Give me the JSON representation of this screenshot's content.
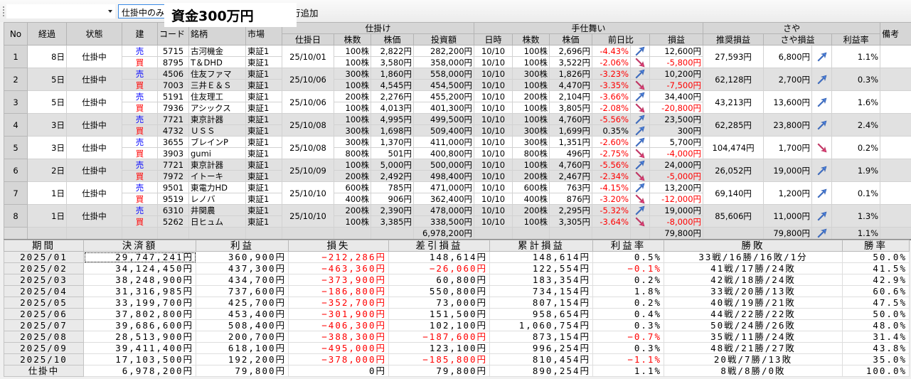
{
  "toolbar": {
    "filter_value": "仕掛中のみ",
    "capital_label": "資金300万円",
    "add_button_label": "行追加"
  },
  "colors": {
    "negative": "#ff0000",
    "sell": "#0000ff",
    "buy": "#ff0000",
    "arrow_up": "#4a7fd8",
    "arrow_down": "#e0407a"
  },
  "positions": {
    "group_headers": {
      "entry": "仕掛け",
      "exit": "手仕舞い",
      "spread": "さや"
    },
    "headers": {
      "no": "No",
      "elapsed": "経過",
      "status": "状態",
      "side": "建",
      "code": "コード",
      "name": "銘柄",
      "market": "市場",
      "entry_date": "仕掛日",
      "shares": "株数",
      "price": "株価",
      "amount": "投資額",
      "exit_date": "日時",
      "exit_shares": "株数",
      "exit_price": "株価",
      "change": "前日比",
      "pl": "損益",
      "recommended": "推奨損益",
      "spread_pl": "さや損益",
      "rate": "利益率",
      "note": "備考"
    },
    "rows": [
      {
        "no": "1",
        "elapsed": "8日",
        "status": "仕掛中",
        "entry_date": "25/10/01",
        "recommended": "27,593円",
        "spread_pl": "6,800円",
        "spread_dir": "up",
        "rate": "1.1%",
        "note": "",
        "legs": [
          {
            "side": "売",
            "code": "5715",
            "name": "古河機金",
            "market": "東証1",
            "shares": "100株",
            "price": "2,822円",
            "amount": "282,200円",
            "exit_date": "10/10",
            "exit_shares": "100株",
            "exit_price": "2,696円",
            "change": "-4.43%",
            "change_dir": "up",
            "pl": "12,600円"
          },
          {
            "side": "買",
            "code": "8795",
            "name": "T＆DHD",
            "market": "東証1",
            "shares": "100株",
            "price": "3,580円",
            "amount": "358,000円",
            "exit_date": "10/10",
            "exit_shares": "100株",
            "exit_price": "3,522円",
            "change": "-2.06%",
            "change_dir": "down",
            "pl": "-5,800円"
          }
        ]
      },
      {
        "no": "2",
        "elapsed": "5日",
        "status": "仕掛中",
        "entry_date": "25/10/06",
        "recommended": "62,128円",
        "spread_pl": "2,700円",
        "spread_dir": "up",
        "rate": "0.3%",
        "note": "",
        "legs": [
          {
            "side": "売",
            "code": "4506",
            "name": "住友ファマ",
            "market": "東証1",
            "shares": "300株",
            "price": "1,860円",
            "amount": "558,000円",
            "exit_date": "10/10",
            "exit_shares": "300株",
            "exit_price": "1,826円",
            "change": "-3.23%",
            "change_dir": "up",
            "pl": "10,200円"
          },
          {
            "side": "買",
            "code": "7003",
            "name": "三井Ｅ＆Ｓ",
            "market": "東証1",
            "shares": "100株",
            "price": "4,545円",
            "amount": "454,500円",
            "exit_date": "10/10",
            "exit_shares": "100株",
            "exit_price": "4,470円",
            "change": "-3.35%",
            "change_dir": "down",
            "pl": "-7,500円"
          }
        ]
      },
      {
        "no": "3",
        "elapsed": "5日",
        "status": "仕掛中",
        "entry_date": "25/10/06",
        "recommended": "43,213円",
        "spread_pl": "13,600円",
        "spread_dir": "up",
        "rate": "1.6%",
        "note": "",
        "legs": [
          {
            "side": "売",
            "code": "5191",
            "name": "住友理工",
            "market": "東証1",
            "shares": "200株",
            "price": "2,276円",
            "amount": "455,200円",
            "exit_date": "10/10",
            "exit_shares": "200株",
            "exit_price": "2,104円",
            "change": "-3.66%",
            "change_dir": "up",
            "pl": "34,400円"
          },
          {
            "side": "買",
            "code": "7936",
            "name": "アシックス",
            "market": "東証1",
            "shares": "100株",
            "price": "4,013円",
            "amount": "401,300円",
            "exit_date": "10/10",
            "exit_shares": "100株",
            "exit_price": "3,805円",
            "change": "-2.08%",
            "change_dir": "down",
            "pl": "-20,800円"
          }
        ]
      },
      {
        "no": "4",
        "elapsed": "3日",
        "status": "仕掛中",
        "entry_date": "25/10/08",
        "recommended": "62,285円",
        "spread_pl": "23,800円",
        "spread_dir": "up",
        "rate": "2.4%",
        "note": "",
        "legs": [
          {
            "side": "売",
            "code": "7721",
            "name": "東京計器",
            "market": "東証1",
            "shares": "100株",
            "price": "4,995円",
            "amount": "499,500円",
            "exit_date": "10/10",
            "exit_shares": "100株",
            "exit_price": "4,760円",
            "change": "-5.56%",
            "change_dir": "up",
            "pl": "23,500円"
          },
          {
            "side": "買",
            "code": "4732",
            "name": "ＵＳＳ",
            "market": "東証1",
            "shares": "300株",
            "price": "1,698円",
            "amount": "509,400円",
            "exit_date": "10/10",
            "exit_shares": "300株",
            "exit_price": "1,699円",
            "change": "0.35%",
            "change_dir": "up",
            "pl": "300円"
          }
        ]
      },
      {
        "no": "5",
        "elapsed": "3日",
        "status": "仕掛中",
        "entry_date": "25/10/08",
        "recommended": "104,474円",
        "spread_pl": "1,700円",
        "spread_dir": "down",
        "rate": "0.2%",
        "note": "",
        "legs": [
          {
            "side": "売",
            "code": "3655",
            "name": "ブレインP",
            "market": "東証1",
            "shares": "300株",
            "price": "1,370円",
            "amount": "411,000円",
            "exit_date": "10/10",
            "exit_shares": "300株",
            "exit_price": "1,351円",
            "change": "-2.60%",
            "change_dir": "up",
            "pl": "5,700円"
          },
          {
            "side": "買",
            "code": "3903",
            "name": "gumi",
            "market": "東証1",
            "shares": "800株",
            "price": "501円",
            "amount": "400,800円",
            "exit_date": "10/10",
            "exit_shares": "800株",
            "exit_price": "496円",
            "change": "-2.75%",
            "change_dir": "down",
            "pl": "-4,000円"
          }
        ]
      },
      {
        "no": "6",
        "elapsed": "2日",
        "status": "仕掛中",
        "entry_date": "25/10/09",
        "recommended": "26,052円",
        "spread_pl": "19,000円",
        "spread_dir": "up",
        "rate": "1.9%",
        "note": "",
        "legs": [
          {
            "side": "売",
            "code": "7721",
            "name": "東京計器",
            "market": "東証1",
            "shares": "100株",
            "price": "5,000円",
            "amount": "500,000円",
            "exit_date": "10/10",
            "exit_shares": "100株",
            "exit_price": "4,760円",
            "change": "-5.56%",
            "change_dir": "up",
            "pl": "24,000円"
          },
          {
            "side": "買",
            "code": "7972",
            "name": "イトーキ",
            "market": "東証1",
            "shares": "200株",
            "price": "2,492円",
            "amount": "498,400円",
            "exit_date": "10/10",
            "exit_shares": "200株",
            "exit_price": "2,467円",
            "change": "-2.34%",
            "change_dir": "down",
            "pl": "-5,000円"
          }
        ]
      },
      {
        "no": "7",
        "elapsed": "1日",
        "status": "仕掛中",
        "entry_date": "25/10/10",
        "recommended": "69,140円",
        "spread_pl": "1,200円",
        "spread_dir": "up",
        "rate": "0.1%",
        "note": "",
        "legs": [
          {
            "side": "売",
            "code": "9501",
            "name": "東電力HD",
            "market": "東証1",
            "shares": "600株",
            "price": "785円",
            "amount": "471,000円",
            "exit_date": "10/10",
            "exit_shares": "600株",
            "exit_price": "763円",
            "change": "-4.15%",
            "change_dir": "up",
            "pl": "13,200円"
          },
          {
            "side": "買",
            "code": "9519",
            "name": "レノバ",
            "market": "東証1",
            "shares": "400株",
            "price": "906円",
            "amount": "362,400円",
            "exit_date": "10/10",
            "exit_shares": "400株",
            "exit_price": "876円",
            "change": "-3.20%",
            "change_dir": "down",
            "pl": "-12,000円"
          }
        ]
      },
      {
        "no": "8",
        "elapsed": "1日",
        "status": "仕掛中",
        "entry_date": "25/10/10",
        "recommended": "85,606円",
        "spread_pl": "11,000円",
        "spread_dir": "up",
        "rate": "1.3%",
        "note": "",
        "legs": [
          {
            "side": "売",
            "code": "6310",
            "name": "井関農",
            "market": "東証1",
            "shares": "200株",
            "price": "2,390円",
            "amount": "478,000円",
            "exit_date": "10/10",
            "exit_shares": "200株",
            "exit_price": "2,295円",
            "change": "-5.32%",
            "change_dir": "up",
            "pl": "19,000円"
          },
          {
            "side": "買",
            "code": "5262",
            "name": "日ヒュム",
            "market": "東証1",
            "shares": "100株",
            "price": "3,385円",
            "amount": "338,500円",
            "exit_date": "10/10",
            "exit_shares": "100株",
            "exit_price": "3,305円",
            "change": "-3.64%",
            "change_dir": "down",
            "pl": "-8,000円"
          }
        ]
      }
    ],
    "totals": {
      "amount": "6,978,200円",
      "pl": "79,800円",
      "spread_pl": "79,800円",
      "spread_dir": "up",
      "rate": "1.1%"
    }
  },
  "summary": {
    "headers": [
      "期間",
      "決済額",
      "利益",
      "損失",
      "差引損益",
      "累計損益",
      "利益率",
      "勝敗",
      "勝率"
    ],
    "rows": [
      [
        "2025/01",
        "29,747,241円",
        "360,900円",
        "−212,286円",
        "148,614円",
        "148,614円",
        "0.5%",
        "33戦/16勝/16敗/1分",
        "50.0%"
      ],
      [
        "2025/02",
        "34,124,450円",
        "437,300円",
        "−463,360円",
        "−26,060円",
        "122,554円",
        "−0.1%",
        "41戦/17勝/24敗",
        "41.5%"
      ],
      [
        "2025/03",
        "38,248,900円",
        "434,700円",
        "−373,900円",
        "60,800円",
        "183,354円",
        "0.2%",
        "42戦/18勝/24敗",
        "42.9%"
      ],
      [
        "2025/04",
        "31,316,985円",
        "737,600円",
        "−186,800円",
        "550,800円",
        "734,154円",
        "1.8%",
        "33戦/20勝/13敗",
        "60.6%"
      ],
      [
        "2025/05",
        "33,199,700円",
        "425,700円",
        "−352,700円",
        "73,000円",
        "807,154円",
        "0.2%",
        "40戦/19勝/21敗",
        "47.5%"
      ],
      [
        "2025/06",
        "37,802,800円",
        "453,400円",
        "−301,900円",
        "151,500円",
        "958,654円",
        "0.4%",
        "44戦/22勝/22敗",
        "50.0%"
      ],
      [
        "2025/07",
        "39,686,600円",
        "508,400円",
        "−406,300円",
        "102,100円",
        "1,060,754円",
        "0.3%",
        "50戦/24勝/26敗",
        "48.0%"
      ],
      [
        "2025/08",
        "28,513,900円",
        "200,700円",
        "−388,300円",
        "−187,600円",
        "873,154円",
        "−0.7%",
        "35戦/11勝/24敗",
        "31.4%"
      ],
      [
        "2025/09",
        "39,411,400円",
        "618,100円",
        "−495,000円",
        "123,100円",
        "996,254円",
        "0.3%",
        "48戦/21勝/27敗",
        "43.8%"
      ],
      [
        "2025/10",
        "17,103,500円",
        "192,200円",
        "−378,000円",
        "−185,800円",
        "810,454円",
        "−1.1%",
        "20戦/7勝/13敗",
        "35.0%"
      ],
      [
        "仕掛中",
        "6,978,200円",
        "79,800円",
        "0円",
        "79,800円",
        "890,254円",
        "1.1%",
        "8戦/8勝/0敗",
        "100.0%"
      ]
    ]
  }
}
